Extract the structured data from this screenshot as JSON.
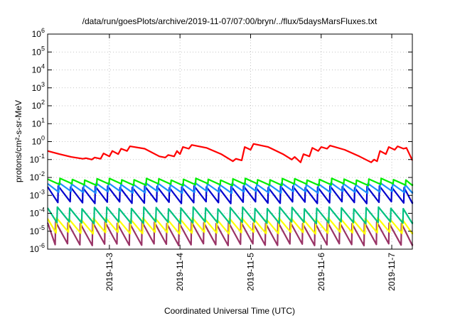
{
  "chart_data": {
    "type": "line",
    "title": "/data/run/goesPlots/archive/2019-11-07/07:00/bryn/../flux/5daysMarsFluxes.txt",
    "xlabel": "Coordinated Universal Time (UTC)",
    "ylabel": "protons/cm²-s-sr-MeV",
    "yscale": "log",
    "ylim": [
      1e-06,
      1000000.0
    ],
    "y_ticks": [
      {
        "value": 1e-06,
        "mant": "10",
        "exp": "-6"
      },
      {
        "value": 1e-05,
        "mant": "10",
        "exp": "-5"
      },
      {
        "value": 0.0001,
        "mant": "10",
        "exp": "-4"
      },
      {
        "value": 0.001,
        "mant": "10",
        "exp": "-3"
      },
      {
        "value": 0.01,
        "mant": "10",
        "exp": "-2"
      },
      {
        "value": 0.1,
        "mant": "10",
        "exp": "-1"
      },
      {
        "value": 1,
        "mant": "10",
        "exp": "0"
      },
      {
        "value": 10,
        "mant": "10",
        "exp": "1"
      },
      {
        "value": 100,
        "mant": "10",
        "exp": "2"
      },
      {
        "value": 1000,
        "mant": "10",
        "exp": "3"
      },
      {
        "value": 10000,
        "mant": "10",
        "exp": "4"
      },
      {
        "value": 100000,
        "mant": "10",
        "exp": "5"
      },
      {
        "value": 1000000,
        "mant": "10",
        "exp": "6"
      }
    ],
    "xlim": [
      "2019-11-02T03:00",
      "2019-11-07T07:00"
    ],
    "x_ticks": [
      {
        "label": "2019-11-3",
        "time": "2019-11-03T00:00"
      },
      {
        "label": "2019-11-4",
        "time": "2019-11-04T00:00"
      },
      {
        "label": "2019-11-5",
        "time": "2019-11-05T00:00"
      },
      {
        "label": "2019-11-6",
        "time": "2019-11-06T00:00"
      },
      {
        "label": "2019-11-7",
        "time": "2019-11-07T00:00"
      }
    ],
    "grid": true,
    "series": [
      {
        "color": "#ff0000",
        "points": [
          [
            "2019-11-02T03:00",
            0.3
          ],
          [
            "2019-11-02T07:00",
            0.2
          ],
          [
            "2019-11-02T11:00",
            0.14
          ],
          [
            "2019-11-02T15:00",
            0.11
          ],
          [
            "2019-11-02T16:00",
            0.12
          ],
          [
            "2019-11-02T18:00",
            0.1
          ],
          [
            "2019-11-02T19:00",
            0.13
          ],
          [
            "2019-11-02T21:00",
            0.11
          ],
          [
            "2019-11-02T22:00",
            0.22
          ],
          [
            "2019-11-03T00:00",
            0.15
          ],
          [
            "2019-11-03T01:00",
            0.3
          ],
          [
            "2019-11-03T03:00",
            0.2
          ],
          [
            "2019-11-03T04:00",
            0.4
          ],
          [
            "2019-11-03T06:00",
            0.3
          ],
          [
            "2019-11-03T07:00",
            0.55
          ],
          [
            "2019-11-03T12:00",
            0.4
          ],
          [
            "2019-11-03T17:00",
            0.15
          ],
          [
            "2019-11-03T19:00",
            0.13
          ],
          [
            "2019-11-03T20:00",
            0.18
          ],
          [
            "2019-11-03T22:00",
            0.15
          ],
          [
            "2019-11-03T23:00",
            0.3
          ],
          [
            "2019-11-04T00:00",
            0.2
          ],
          [
            "2019-11-04T01:00",
            0.5
          ],
          [
            "2019-11-04T03:00",
            0.4
          ],
          [
            "2019-11-04T04:00",
            0.65
          ],
          [
            "2019-11-04T09:00",
            0.45
          ],
          [
            "2019-11-04T14:00",
            0.2
          ],
          [
            "2019-11-04T18:00",
            0.08
          ],
          [
            "2019-11-04T19:00",
            0.11
          ],
          [
            "2019-11-04T21:00",
            0.09
          ],
          [
            "2019-11-04T22:00",
            0.5
          ],
          [
            "2019-11-05T00:00",
            0.35
          ],
          [
            "2019-11-05T01:00",
            0.75
          ],
          [
            "2019-11-05T06:00",
            0.5
          ],
          [
            "2019-11-05T11:00",
            0.2
          ],
          [
            "2019-11-05T14:00",
            0.1
          ],
          [
            "2019-11-05T15:00",
            0.14
          ],
          [
            "2019-11-05T17:00",
            0.07
          ],
          [
            "2019-11-05T18:00",
            0.2
          ],
          [
            "2019-11-05T20:00",
            0.15
          ],
          [
            "2019-11-05T21:00",
            0.45
          ],
          [
            "2019-11-05T23:00",
            0.3
          ],
          [
            "2019-11-06T00:00",
            0.5
          ],
          [
            "2019-11-06T02:00",
            0.4
          ],
          [
            "2019-11-06T03:00",
            0.6
          ],
          [
            "2019-11-06T08:00",
            0.35
          ],
          [
            "2019-11-06T13:00",
            0.15
          ],
          [
            "2019-11-06T17:00",
            0.07
          ],
          [
            "2019-11-06T18:00",
            0.1
          ],
          [
            "2019-11-06T19:00",
            0.08
          ],
          [
            "2019-11-06T20:00",
            0.3
          ],
          [
            "2019-11-06T22:00",
            0.2
          ],
          [
            "2019-11-06T23:00",
            0.5
          ],
          [
            "2019-11-07T01:00",
            0.35
          ],
          [
            "2019-11-07T02:00",
            0.55
          ],
          [
            "2019-11-07T04:00",
            0.4
          ],
          [
            "2019-11-07T05:00",
            0.45
          ],
          [
            "2019-11-07T07:00",
            0.09
          ]
        ]
      },
      {
        "color": "#00ee00",
        "period_hours": 4.2,
        "phase_hours": 0,
        "peak": 0.008,
        "trough": 0.004
      },
      {
        "color": "#1e90ff",
        "period_hours": 4.2,
        "phase_hours": 0.3,
        "peak": 0.0045,
        "trough": 0.0015
      },
      {
        "color": "#0000cd",
        "period_hours": 4.2,
        "phase_hours": 0.6,
        "peak": 0.003,
        "trough": 0.0004
      },
      {
        "color": "#00c080",
        "period_hours": 4.2,
        "phase_hours": 0.9,
        "peak": 0.0002,
        "trough": 3e-05
      },
      {
        "color": "#ffff00",
        "period_hours": 4.2,
        "phase_hours": 1.2,
        "peak": 5e-05,
        "trough": 8e-06
      },
      {
        "color": "#993366",
        "period_hours": 4.2,
        "phase_hours": 1.5,
        "peak": 3e-05,
        "trough": 1.8e-06
      }
    ]
  }
}
